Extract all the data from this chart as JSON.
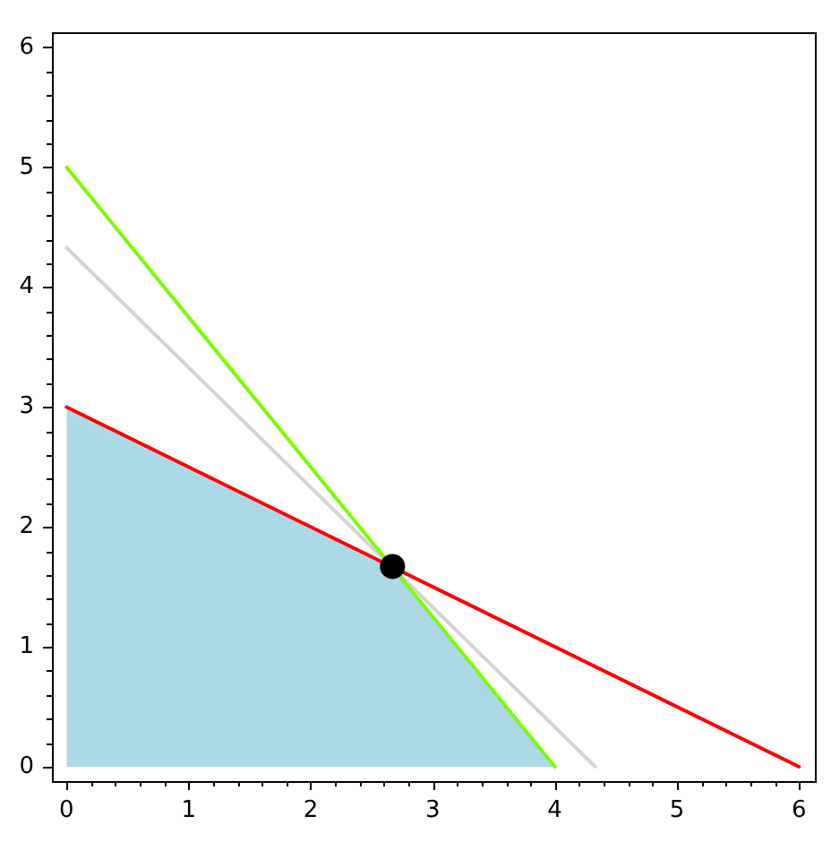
{
  "chart_data": {
    "type": "line",
    "xlim": [
      -0.12,
      6.13
    ],
    "ylim": [
      -0.12,
      6.13
    ],
    "xticks": [
      0,
      {
        "value": 0.2,
        "label": null
      },
      {
        "value": 0.4,
        "label": null
      },
      {
        "value": 0.6,
        "label": null
      },
      {
        "value": 0.8,
        "label": null
      },
      1,
      {
        "value": 1.2,
        "label": null
      },
      {
        "value": 1.4,
        "label": null
      },
      {
        "value": 1.6,
        "label": null
      },
      {
        "value": 1.8,
        "label": null
      },
      2,
      {
        "value": 2.2,
        "label": null
      },
      {
        "value": 2.4,
        "label": null
      },
      {
        "value": 2.6,
        "label": null
      },
      {
        "value": 2.8,
        "label": null
      },
      3,
      {
        "value": 3.2,
        "label": null
      },
      {
        "value": 3.4,
        "label": null
      },
      {
        "value": 3.6,
        "label": null
      },
      {
        "value": 3.8,
        "label": null
      },
      4,
      {
        "value": 4.2,
        "label": null
      },
      {
        "value": 4.4,
        "label": null
      },
      {
        "value": 4.6,
        "label": null
      },
      {
        "value": 4.8,
        "label": null
      },
      5,
      {
        "value": 5.2,
        "label": null
      },
      {
        "value": 5.4,
        "label": null
      },
      {
        "value": 5.6,
        "label": null
      },
      {
        "value": 5.8,
        "label": null
      },
      6
    ],
    "yticks": [
      0,
      {
        "value": 0.2,
        "label": null
      },
      {
        "value": 0.4,
        "label": null
      },
      {
        "value": 0.6,
        "label": null
      },
      {
        "value": 0.8,
        "label": null
      },
      1,
      {
        "value": 1.2,
        "label": null
      },
      {
        "value": 1.4,
        "label": null
      },
      {
        "value": 1.6,
        "label": null
      },
      {
        "value": 1.8,
        "label": null
      },
      2,
      {
        "value": 2.2,
        "label": null
      },
      {
        "value": 2.4,
        "label": null
      },
      {
        "value": 2.6,
        "label": null
      },
      {
        "value": 2.8,
        "label": null
      },
      3,
      {
        "value": 3.2,
        "label": null
      },
      {
        "value": 3.4,
        "label": null
      },
      {
        "value": 3.6,
        "label": null
      },
      {
        "value": 3.8,
        "label": null
      },
      4,
      {
        "value": 4.2,
        "label": null
      },
      {
        "value": 4.4,
        "label": null
      },
      {
        "value": 4.6,
        "label": null
      },
      {
        "value": 4.8,
        "label": null
      },
      5,
      {
        "value": 5.2,
        "label": null
      },
      {
        "value": 5.4,
        "label": null
      },
      {
        "value": 5.6,
        "label": null
      },
      {
        "value": 5.8,
        "label": null
      },
      6
    ],
    "series": [
      {
        "type": "area",
        "color": "#add8e6",
        "x": [
          0,
          2.67,
          4
        ],
        "values": [
          3,
          1.67,
          0
        ]
      },
      {
        "color": "#d3d3d3",
        "x": [
          0,
          4.33
        ],
        "values": [
          4.33,
          0
        ]
      },
      {
        "color": "#7cfc00",
        "x": [
          0,
          4
        ],
        "values": [
          5,
          0
        ]
      },
      {
        "color": "#ff0000",
        "x": [
          0,
          6
        ],
        "values": [
          3,
          0
        ]
      },
      {
        "type": "scatter",
        "color": "#000000",
        "marker": "circle",
        "x": [
          2.67
        ],
        "values": [
          1.67
        ]
      }
    ]
  }
}
